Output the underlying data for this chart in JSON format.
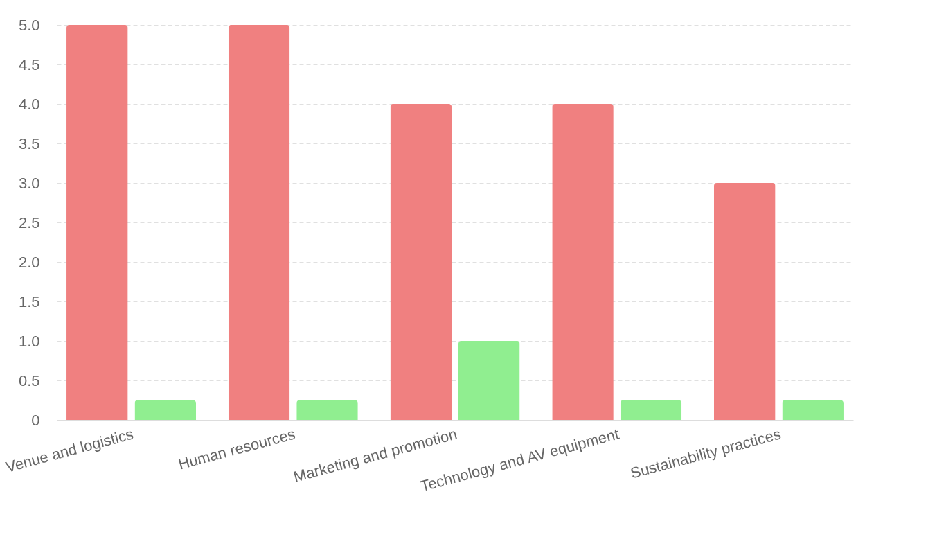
{
  "chart_data": {
    "type": "bar",
    "categories": [
      "Venue and logistics",
      "Human resources",
      "Marketing and promotion",
      "Technology and AV equipment",
      "Sustainability practices"
    ],
    "series": [
      {
        "color": "#f08080",
        "values": [
          5,
          5,
          4,
          4,
          3
        ]
      },
      {
        "color": "#90ee90",
        "values": [
          0.25,
          0.25,
          1,
          0.25,
          0.25
        ]
      }
    ],
    "ylim": [
      0,
      5
    ],
    "yticks": [
      0,
      {
        "value": 0.5,
        "label": "0.5"
      },
      {
        "value": 1,
        "label": "1.0"
      },
      {
        "value": 1.5,
        "label": "1.5"
      },
      {
        "value": 2,
        "label": "2.0"
      },
      {
        "value": 2.5,
        "label": "2.5"
      },
      {
        "value": 3,
        "label": "3.0"
      },
      {
        "value": 3.5,
        "label": "3.5"
      },
      {
        "value": 4,
        "label": "4.0"
      },
      {
        "value": 4.5,
        "label": "4.5"
      },
      {
        "value": 5,
        "label": "5.0"
      }
    ],
    "grid": "y"
  }
}
